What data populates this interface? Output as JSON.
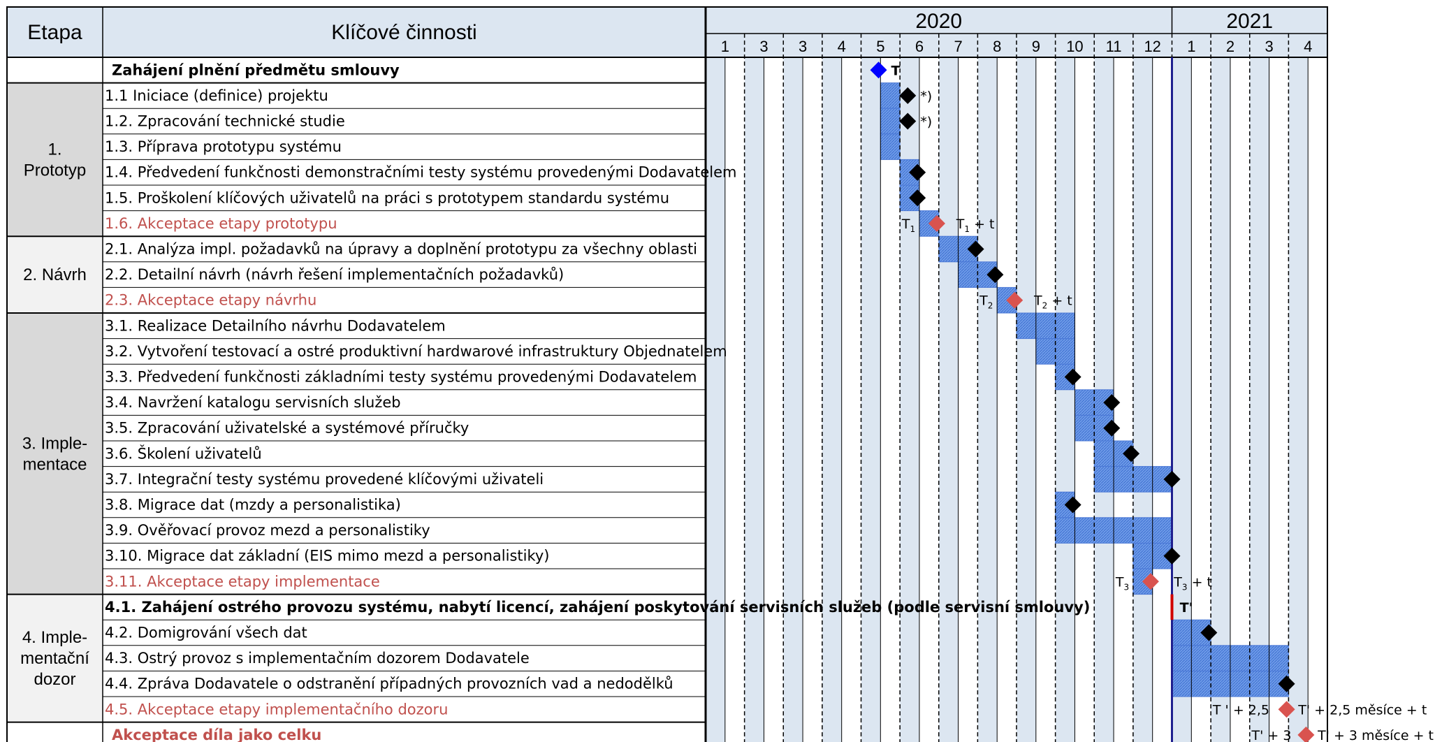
{
  "header": {
    "etapa": "Etapa",
    "cinnosti": "Klíčové činnosti",
    "years": [
      {
        "label": "2020",
        "from_col": 0,
        "to_col": 12
      },
      {
        "label": "2021",
        "from_col": 12,
        "to_col": 16
      }
    ],
    "months": [
      "1",
      "3",
      "3",
      "4",
      "5",
      "6",
      "7",
      "8",
      "9",
      "10",
      "11",
      "12",
      "1",
      "2",
      "3",
      "4"
    ]
  },
  "stages": [
    {
      "lines": [
        "1.",
        "Prototyp"
      ],
      "from_row": 1,
      "to_row": 7,
      "fill": "#d9d9d9"
    },
    {
      "lines": [
        "2. Návrh"
      ],
      "from_row": 7,
      "to_row": 10,
      "fill": "#f2f2f2"
    },
    {
      "lines": [
        "3. Imple-",
        "mentace"
      ],
      "from_row": 10,
      "to_row": 21,
      "fill": "#d9d9d9"
    },
    {
      "lines": [
        "4. Imple-",
        "mentační",
        "dozor"
      ],
      "from_row": 21,
      "to_row": 26,
      "fill": "#f2f2f2"
    }
  ],
  "rows": [
    {
      "label": "Zahájení plnění předmětu smlouvy",
      "style": "bold",
      "span": "full"
    },
    {
      "label": "1.1 Iniciace (definice) projektu",
      "style": "normal",
      "span": "act"
    },
    {
      "label": "1.2. Zpracování technické studie",
      "style": "normal",
      "span": "act"
    },
    {
      "label": "1.3. Příprava prototypu systému",
      "style": "normal",
      "span": "act"
    },
    {
      "label": "1.4. Předvedení funkčnosti demonstračními testy systému provedenými Dodavatelem",
      "style": "normal",
      "span": "act"
    },
    {
      "label": "1.5. Proškolení klíčových uživatelů na práci s prototypem standardu systému",
      "style": "normal",
      "span": "act"
    },
    {
      "label": "1.6. Akceptace etapy prototypu",
      "style": "red",
      "span": "act"
    },
    {
      "label": "2.1. Analýza impl. požadavků na úpravy a doplnění prototypu za všechny oblasti",
      "style": "normal",
      "span": "act"
    },
    {
      "label": "2.2. Detailní návrh (návrh řešení implementačních požadavků)",
      "style": "normal",
      "span": "act"
    },
    {
      "label": "2.3. Akceptace etapy návrhu",
      "style": "red",
      "span": "act"
    },
    {
      "label": "3.1. Realizace Detailního návrhu Dodavatelem",
      "style": "normal",
      "span": "act"
    },
    {
      "label": "3.2. Vytvoření testovací a ostré produktivní hardwarové infrastruktury Objednatelem",
      "style": "normal",
      "span": "act"
    },
    {
      "label": "3.3. Předvedení funkčnosti základními testy systému provedenými Dodavatelem",
      "style": "normal",
      "span": "act"
    },
    {
      "label": "3.4. Navržení katalogu servisních služeb",
      "style": "normal",
      "span": "act"
    },
    {
      "label": "3.5. Zpracování uživatelské a systémové příručky",
      "style": "normal",
      "span": "act"
    },
    {
      "label": "3.6. Školení uživatelů",
      "style": "normal",
      "span": "act"
    },
    {
      "label": "3.7. Integrační testy systému provedené klíčovými uživateli",
      "style": "normal",
      "span": "act"
    },
    {
      "label": "3.8. Migrace dat (mzdy a personalistika)",
      "style": "normal",
      "span": "act"
    },
    {
      "label": "3.9. Ověřovací provoz mezd a personalistiky",
      "style": "normal",
      "span": "act"
    },
    {
      "label": "3.10. Migrace dat základní (EIS mimo mezd a personalistiky)",
      "style": "normal",
      "span": "act"
    },
    {
      "label": "3.11. Akceptace etapy implementace",
      "style": "red",
      "span": "act"
    },
    {
      "label": "4.1. Zahájení ostrého provozu systému, nabytí licencí, zahájení poskytování servisních služeb (podle servisní smlouvy)",
      "style": "bold",
      "span": "act"
    },
    {
      "label": "4.2. Domigrování všech dat",
      "style": "normal",
      "span": "act"
    },
    {
      "label": "4.3. Ostrý provoz s implementačním dozorem Dodavatele",
      "style": "normal",
      "span": "act"
    },
    {
      "label": "4.4. Zpráva Dodavatele o odstranění případných provozních vad a nedodělků",
      "style": "normal",
      "span": "act"
    },
    {
      "label": "4.5. Akceptace etapy implementačního dozoru",
      "style": "red",
      "span": "act"
    },
    {
      "label": "Akceptace díla jako celku",
      "style": "redbold",
      "span": "full"
    }
  ],
  "bars": [
    {
      "row": 1,
      "start": 4.5,
      "end": 5
    },
    {
      "row": 2,
      "start": 4.5,
      "end": 5
    },
    {
      "row": 3,
      "start": 4.5,
      "end": 5
    },
    {
      "row": 4,
      "start": 5,
      "end": 5.5
    },
    {
      "row": 5,
      "start": 5,
      "end": 5.5
    },
    {
      "row": 6,
      "start": 5.5,
      "end": 6
    },
    {
      "row": 7,
      "start": 6,
      "end": 7
    },
    {
      "row": 8,
      "start": 6.5,
      "end": 7.5
    },
    {
      "row": 9,
      "start": 7.5,
      "end": 8
    },
    {
      "row": 10,
      "start": 8,
      "end": 9.5
    },
    {
      "row": 11,
      "start": 8.5,
      "end": 9.5
    },
    {
      "row": 12,
      "start": 9,
      "end": 9.5
    },
    {
      "row": 13,
      "start": 9.5,
      "end": 10.5
    },
    {
      "row": 14,
      "start": 9.5,
      "end": 10.5
    },
    {
      "row": 15,
      "start": 10,
      "end": 11
    },
    {
      "row": 16,
      "start": 10,
      "end": 12
    },
    {
      "row": 17,
      "start": 9,
      "end": 9.5
    },
    {
      "row": 18,
      "start": 9,
      "end": 12
    },
    {
      "row": 19,
      "start": 11,
      "end": 12
    },
    {
      "row": 20,
      "start": 11,
      "end": 11.5
    },
    {
      "row": 22,
      "start": 12,
      "end": 13
    },
    {
      "row": 23,
      "start": 12,
      "end": 15
    },
    {
      "row": 24,
      "start": 12,
      "end": 15
    }
  ],
  "milestones": [
    {
      "row": 0,
      "pos": 4.45,
      "color": "#0000ff",
      "label": "T",
      "label_bold": true
    },
    {
      "row": 1,
      "pos": 5.2,
      "color": "#000000",
      "label": "*)"
    },
    {
      "row": 2,
      "pos": 5.2,
      "color": "#000000",
      "label": "*)"
    },
    {
      "row": 4,
      "pos": 5.45,
      "color": "#000000"
    },
    {
      "row": 5,
      "pos": 5.45,
      "color": "#000000"
    },
    {
      "row": 6,
      "pos": 5.95,
      "color": "#d9534f"
    },
    {
      "row": 7,
      "pos": 6.95,
      "color": "#000000"
    },
    {
      "row": 8,
      "pos": 7.45,
      "color": "#000000"
    },
    {
      "row": 9,
      "pos": 7.95,
      "color": "#d9534f"
    },
    {
      "row": 12,
      "pos": 9.45,
      "color": "#000000"
    },
    {
      "row": 13,
      "pos": 10.45,
      "color": "#000000"
    },
    {
      "row": 14,
      "pos": 10.45,
      "color": "#000000"
    },
    {
      "row": 15,
      "pos": 10.95,
      "color": "#000000"
    },
    {
      "row": 16,
      "pos": 12,
      "color": "#000000"
    },
    {
      "row": 17,
      "pos": 9.45,
      "color": "#000000"
    },
    {
      "row": 19,
      "pos": 12,
      "color": "#000000"
    },
    {
      "row": 20,
      "pos": 11.45,
      "color": "#d9534f"
    },
    {
      "row": 22,
      "pos": 12.95,
      "color": "#000000"
    },
    {
      "row": 24,
      "pos": 14.95,
      "color": "#000000"
    },
    {
      "row": 25,
      "pos": 14.95,
      "color": "#d9534f"
    },
    {
      "row": 26,
      "pos": 15.45,
      "color": "#d9534f"
    }
  ],
  "time_labels": [
    {
      "row": 6,
      "pos": 5.05,
      "base": "T",
      "sub": "1",
      "suffix": ""
    },
    {
      "row": 6,
      "pos": 6.45,
      "base": "T",
      "sub": "1",
      "suffix": " + t"
    },
    {
      "row": 9,
      "pos": 7.05,
      "base": "T",
      "sub": "2",
      "suffix": ""
    },
    {
      "row": 9,
      "pos": 8.45,
      "base": "T",
      "sub": "2",
      "suffix": " + t"
    },
    {
      "row": 20,
      "pos": 10.55,
      "base": "T",
      "sub": "3",
      "suffix": ""
    },
    {
      "row": 20,
      "pos": 12.05,
      "base": "T",
      "sub": "3",
      "suffix": " + t"
    },
    {
      "row": 21,
      "pos": 12.2,
      "base": "T'",
      "sub": "",
      "suffix": "",
      "bold": true
    },
    {
      "row": 25,
      "pos": 13.05,
      "base": "T ' + 2,5",
      "sub": "",
      "suffix": ""
    },
    {
      "row": 25,
      "pos": 15.25,
      "base": "T' + 2,5 měsíce + t",
      "sub": "",
      "suffix": ""
    },
    {
      "row": 26,
      "pos": 14.05,
      "base": "T' + 3",
      "sub": "",
      "suffix": ""
    },
    {
      "row": 26,
      "pos": 15.75,
      "base": "T' + 3 měsíce + t",
      "sub": "",
      "suffix": ""
    }
  ],
  "markers": {
    "today_col": 12,
    "red_start_row": 21
  },
  "colors": {
    "header_fill": "#dce6f1",
    "bar_fill": "#6f9be8",
    "stripe": "#dce6f1",
    "today_line": "#1f1f8f",
    "red_text": "#c0504d",
    "red_marker": "#d00000"
  }
}
